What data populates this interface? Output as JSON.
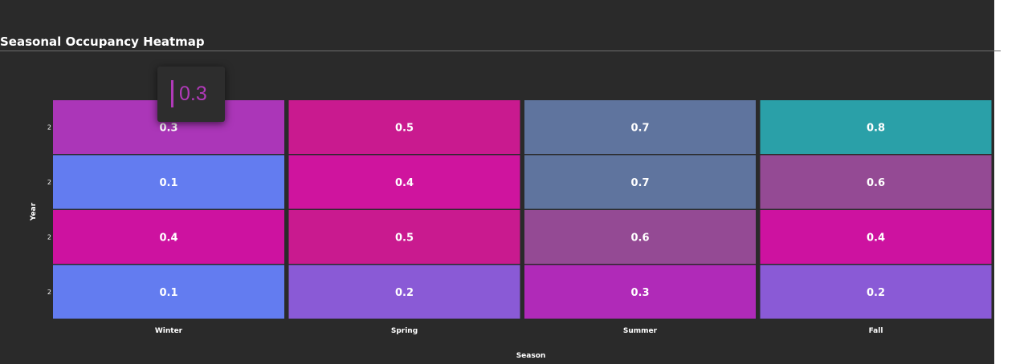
{
  "chart_data": {
    "type": "heatmap",
    "title": "Seasonal Occupancy Heatmap",
    "xlabel": "Season",
    "ylabel": "Year",
    "x_categories": [
      "Winter",
      "Spring",
      "Summer",
      "Fall"
    ],
    "y_categories": [
      "2",
      "2",
      "2",
      "2"
    ],
    "values": [
      [
        0.3,
        0.5,
        0.7,
        0.8
      ],
      [
        0.1,
        0.4,
        0.7,
        0.6
      ],
      [
        0.4,
        0.5,
        0.6,
        0.4
      ],
      [
        0.1,
        0.2,
        0.3,
        0.2
      ]
    ],
    "colors": [
      [
        "#ab36b8",
        "#c91a8f",
        "#5f749e",
        "#2aa0a8"
      ],
      [
        "#637cf0",
        "#cf149e",
        "#5f749e",
        "#944a94"
      ],
      [
        "#cd12a0",
        "#c91a8f",
        "#944a94",
        "#cd12a0"
      ],
      [
        "#637cf0",
        "#8a5ad6",
        "#b02ab8",
        "#8a5ad6"
      ]
    ],
    "grid": false,
    "legend": "none"
  },
  "tooltip": {
    "value": "0.3",
    "color": "#b03ab8"
  },
  "colors": {
    "background": "#2a2a2a",
    "text": "#ffffff"
  }
}
